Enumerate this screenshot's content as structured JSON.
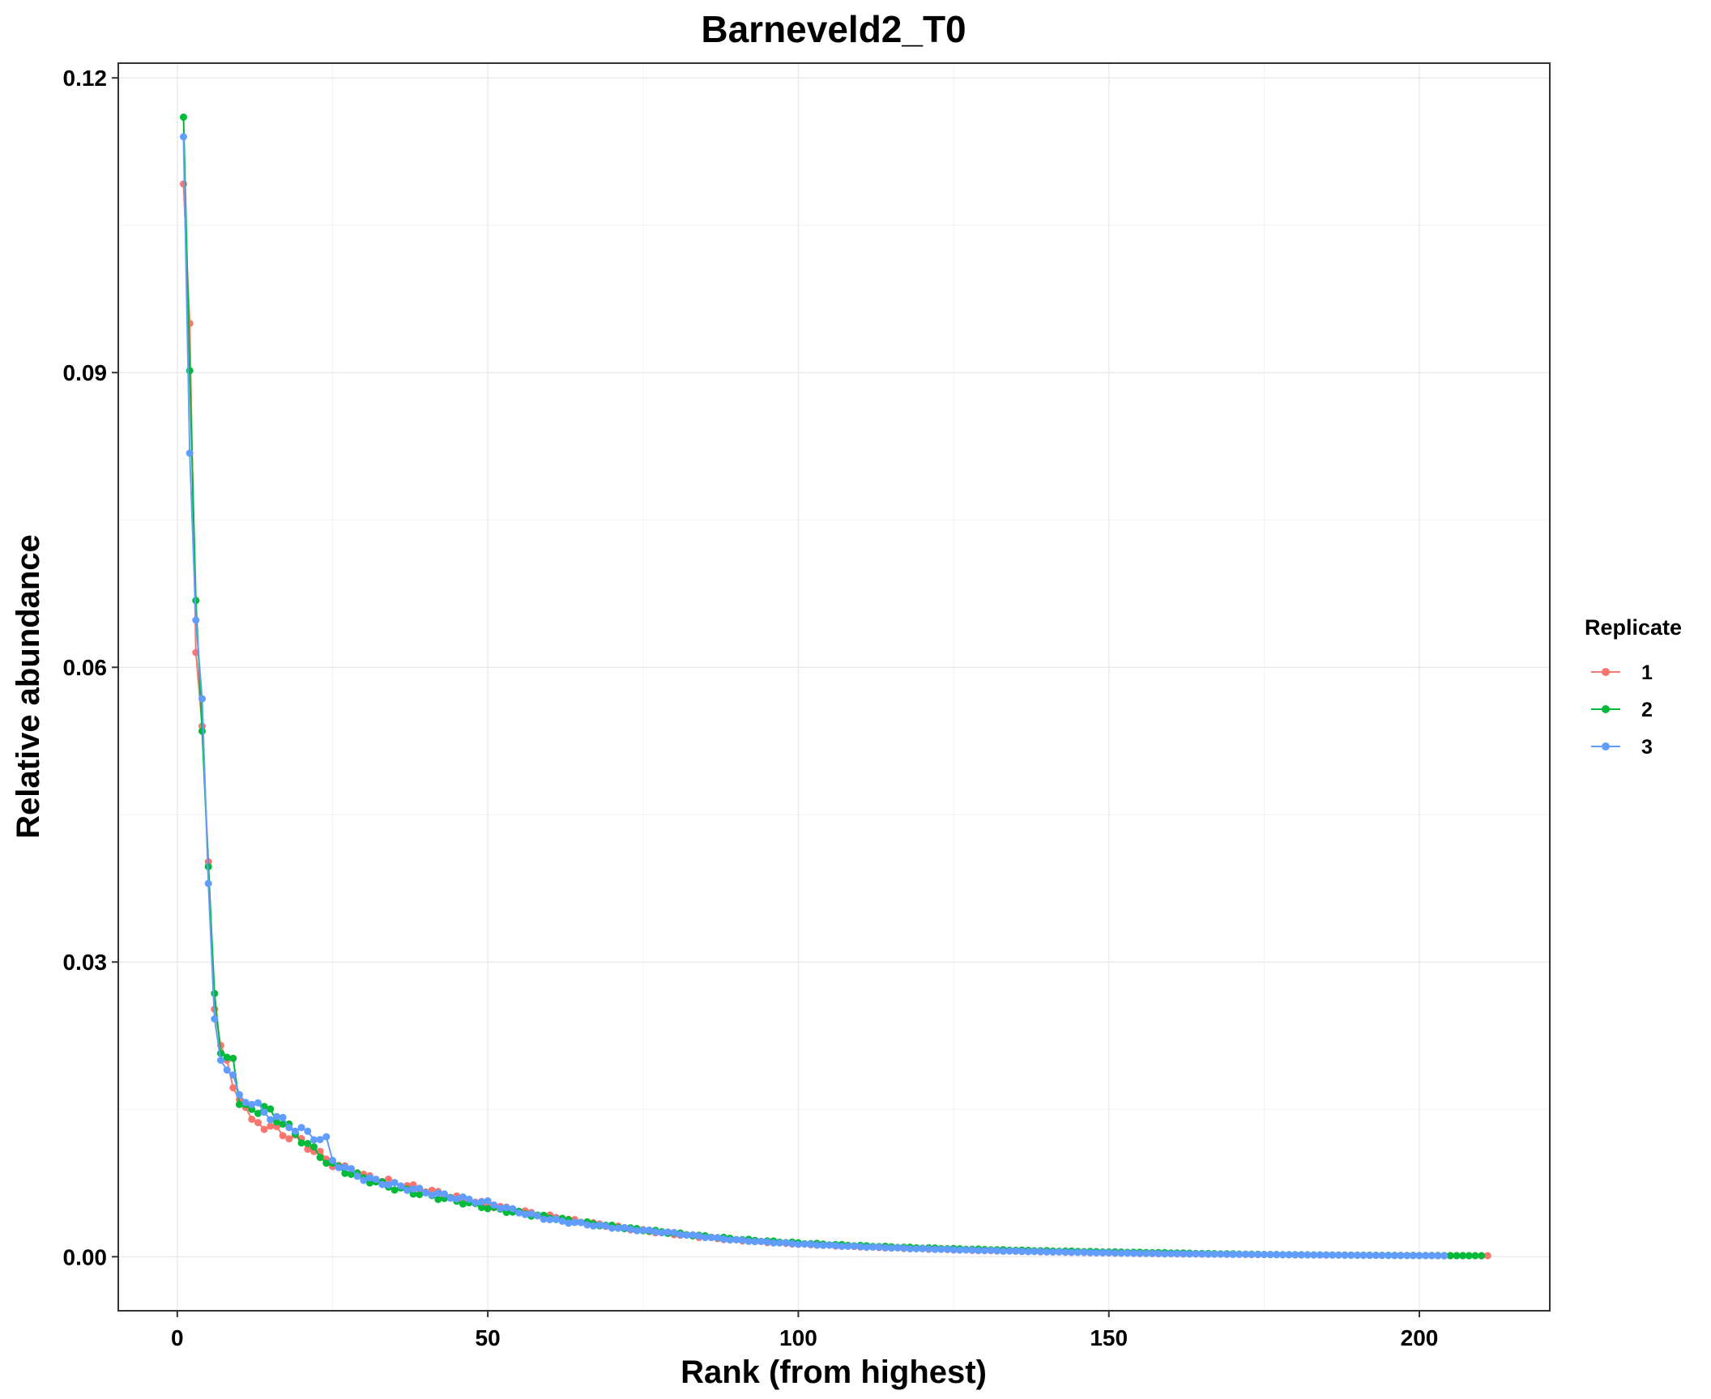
{
  "chart_data": {
    "type": "line",
    "title": "Barneveld2_T0",
    "xlabel": "Rank (from highest)",
    "ylabel": "Relative abundance",
    "xlim": [
      -9.5,
      221
    ],
    "ylim": [
      -0.0055,
      0.1215
    ],
    "x_ticks": [
      0,
      50,
      100,
      150,
      200
    ],
    "y_ticks": [
      0.0,
      0.03,
      0.06,
      0.09,
      0.12
    ],
    "x_tick_labels": [
      "0",
      "50",
      "100",
      "150",
      "200"
    ],
    "y_tick_labels": [
      "0.00",
      "0.03",
      "0.06",
      "0.09",
      "0.12"
    ],
    "x_minor": [
      25,
      75,
      125,
      175
    ],
    "y_minor": [
      0.015,
      0.045,
      0.075,
      0.105
    ],
    "grid": true,
    "legend": {
      "title": "Replicate",
      "position": "right"
    },
    "markers": true,
    "series": [
      {
        "name": "1",
        "color": "#F8766D",
        "n": 211,
        "head": [
          0.1092,
          0.095,
          0.0615,
          0.054,
          0.0402,
          0.0252,
          0.0215,
          0.02,
          0.0172,
          0.016,
          0.0152,
          0.014
        ],
        "checkpoints": [
          [
            12,
            0.014
          ],
          [
            20,
            0.0118
          ],
          [
            25,
            0.0095
          ],
          [
            30,
            0.0082
          ],
          [
            35,
            0.0075
          ],
          [
            40,
            0.0068
          ],
          [
            45,
            0.006
          ],
          [
            50,
            0.0053
          ],
          [
            60,
            0.0041
          ],
          [
            70,
            0.0031
          ],
          [
            80,
            0.0023
          ],
          [
            90,
            0.0017
          ],
          [
            100,
            0.0013
          ],
          [
            120,
            0.0008
          ],
          [
            140,
            0.0005
          ],
          [
            160,
            0.0003
          ],
          [
            180,
            0.0002
          ],
          [
            211,
            0.0001
          ]
        ]
      },
      {
        "name": "2",
        "color": "#00BA38",
        "n": 210,
        "head": [
          0.116,
          0.0902,
          0.0668,
          0.0535,
          0.0397,
          0.0268,
          0.0207,
          0.0203,
          0.0202,
          0.0155,
          0.0155,
          0.015
        ],
        "checkpoints": [
          [
            12,
            0.015
          ],
          [
            15,
            0.0148
          ],
          [
            20,
            0.012
          ],
          [
            25,
            0.0093
          ],
          [
            30,
            0.008
          ],
          [
            35,
            0.007
          ],
          [
            40,
            0.0063
          ],
          [
            45,
            0.0057
          ],
          [
            50,
            0.005
          ],
          [
            60,
            0.004
          ],
          [
            70,
            0.0031
          ],
          [
            80,
            0.0024
          ],
          [
            90,
            0.0018
          ],
          [
            100,
            0.0014
          ],
          [
            120,
            0.0009
          ],
          [
            140,
            0.0006
          ],
          [
            160,
            0.0004
          ],
          [
            180,
            0.0002
          ],
          [
            210,
            0.0001
          ]
        ]
      },
      {
        "name": "3",
        "color": "#619CFF",
        "n": 204,
        "head": [
          0.114,
          0.0818,
          0.0648,
          0.0568,
          0.038,
          0.0242,
          0.02,
          0.019,
          0.0185,
          0.0165,
          0.0157,
          0.0155
        ],
        "checkpoints": [
          [
            12,
            0.0155
          ],
          [
            20,
            0.0128
          ],
          [
            24,
            0.0118
          ],
          [
            25,
            0.0098
          ],
          [
            30,
            0.008
          ],
          [
            35,
            0.0073
          ],
          [
            40,
            0.0066
          ],
          [
            45,
            0.006
          ],
          [
            50,
            0.0055
          ],
          [
            60,
            0.0038
          ],
          [
            70,
            0.003
          ],
          [
            80,
            0.0024
          ],
          [
            90,
            0.0017
          ],
          [
            100,
            0.0013
          ],
          [
            120,
            0.0008
          ],
          [
            140,
            0.0005
          ],
          [
            160,
            0.0003
          ],
          [
            180,
            0.0002
          ],
          [
            204,
            0.0001
          ]
        ]
      }
    ]
  }
}
